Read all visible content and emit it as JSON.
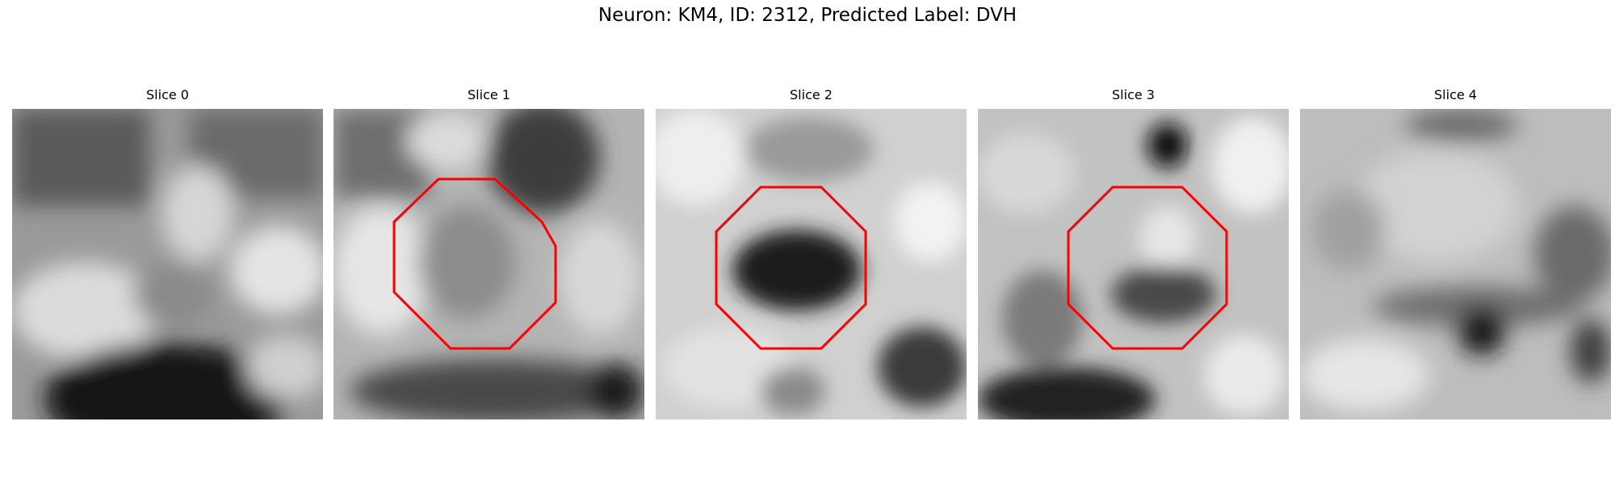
{
  "figure": {
    "title": "Neuron: KM4, ID: 2312, Predicted Label: DVH",
    "contour_color": "#ff0000"
  },
  "slices": [
    {
      "label": "Slice 0",
      "has_contour": false,
      "description": "grayscale microscopy patch, dark blob bottom center"
    },
    {
      "label": "Slice 1",
      "has_contour": true
    },
    {
      "label": "Slice 2",
      "has_contour": true
    },
    {
      "label": "Slice 3",
      "has_contour": true
    },
    {
      "label": "Slice 4",
      "has_contour": false
    }
  ]
}
